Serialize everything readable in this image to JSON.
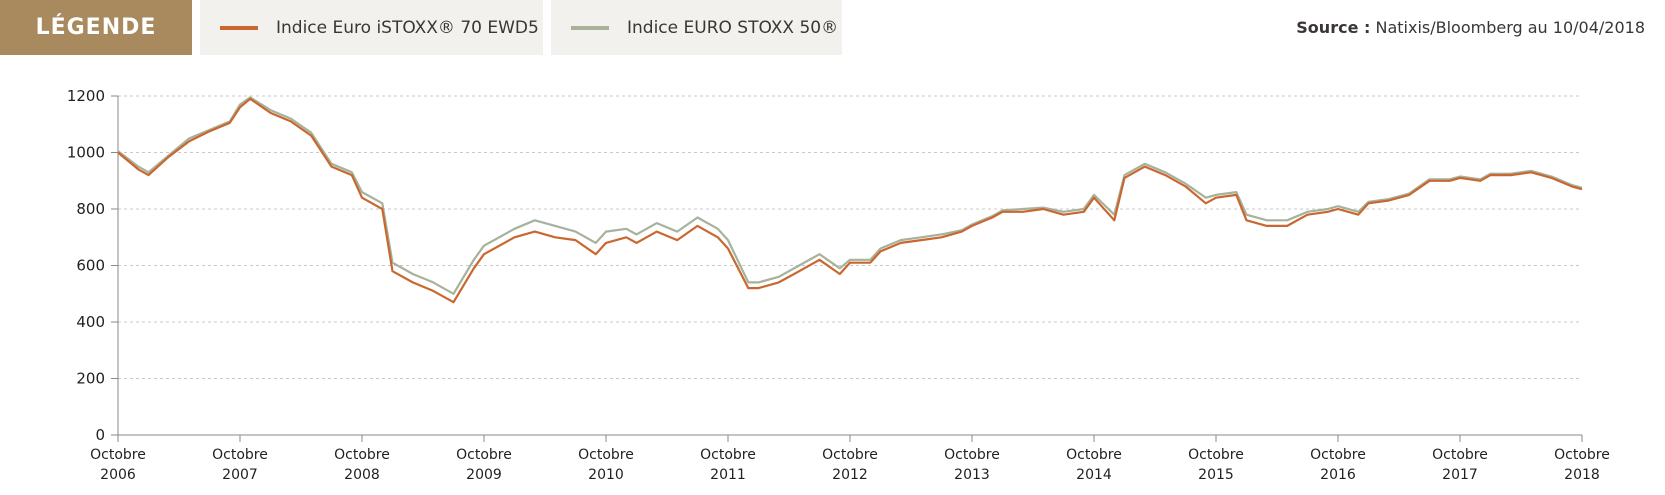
{
  "legend": {
    "title": "LÉGENDE",
    "items": [
      {
        "label": "Indice Euro iSTOXX® 70 EWD5",
        "color": "#c9672f"
      },
      {
        "label": "Indice EURO STOXX 50®",
        "color": "#a6b29c"
      }
    ]
  },
  "source": {
    "label": "Source :",
    "text": "Natixis/Bloomberg au 10/04/2018"
  },
  "chart_data": {
    "type": "line",
    "ylim": [
      0,
      1200
    ],
    "yticks": [
      0,
      200,
      400,
      600,
      800,
      1000,
      1200
    ],
    "xlim": [
      "2006-10",
      "2018-10"
    ],
    "xticks": [
      {
        "month": "Octobre",
        "year": "2006"
      },
      {
        "month": "Octobre",
        "year": "2007"
      },
      {
        "month": "Octobre",
        "year": "2008"
      },
      {
        "month": "Octobre",
        "year": "2009"
      },
      {
        "month": "Octobre",
        "year": "2010"
      },
      {
        "month": "Octobre",
        "year": "2011"
      },
      {
        "month": "Octobre",
        "year": "2012"
      },
      {
        "month": "Octobre",
        "year": "2013"
      },
      {
        "month": "Octobre",
        "year": "2014"
      },
      {
        "month": "Octobre",
        "year": "2015"
      },
      {
        "month": "Octobre",
        "year": "2016"
      },
      {
        "month": "Octobre",
        "year": "2017"
      },
      {
        "month": "Octobre",
        "year": "2018"
      }
    ],
    "grid": true,
    "series": [
      {
        "name": "Indice Euro iSTOXX® 70 EWD5",
        "color": "#c9672f",
        "x": [
          "2006-10",
          "2006-12",
          "2007-01",
          "2007-03",
          "2007-05",
          "2007-07",
          "2007-09",
          "2007-10",
          "2007-11",
          "2008-01",
          "2008-03",
          "2008-05",
          "2008-07",
          "2008-09",
          "2008-10",
          "2008-12",
          "2009-01",
          "2009-03",
          "2009-05",
          "2009-07",
          "2009-09",
          "2009-10",
          "2010-01",
          "2010-03",
          "2010-05",
          "2010-07",
          "2010-09",
          "2010-10",
          "2010-12",
          "2011-01",
          "2011-03",
          "2011-05",
          "2011-07",
          "2011-09",
          "2011-10",
          "2011-12",
          "2012-01",
          "2012-03",
          "2012-05",
          "2012-07",
          "2012-09",
          "2012-10",
          "2012-12",
          "2013-01",
          "2013-03",
          "2013-05",
          "2013-07",
          "2013-09",
          "2013-10",
          "2013-12",
          "2014-01",
          "2014-03",
          "2014-05",
          "2014-07",
          "2014-09",
          "2014-10",
          "2014-12",
          "2015-01",
          "2015-03",
          "2015-05",
          "2015-07",
          "2015-09",
          "2015-10",
          "2015-12",
          "2016-01",
          "2016-03",
          "2016-05",
          "2016-07",
          "2016-09",
          "2016-10",
          "2016-12",
          "2017-01",
          "2017-03",
          "2017-05",
          "2017-07",
          "2017-09",
          "2017-10",
          "2017-12",
          "2018-01",
          "2018-03",
          "2018-05",
          "2018-07",
          "2018-09",
          "2018-10"
        ],
        "y": [
          1000,
          940,
          920,
          985,
          1040,
          1075,
          1105,
          1160,
          1190,
          1140,
          1110,
          1060,
          950,
          920,
          840,
          800,
          580,
          540,
          510,
          470,
          590,
          640,
          700,
          720,
          700,
          690,
          640,
          680,
          700,
          680,
          720,
          690,
          740,
          700,
          660,
          520,
          520,
          540,
          580,
          620,
          570,
          610,
          610,
          650,
          680,
          690,
          700,
          720,
          740,
          770,
          790,
          790,
          800,
          780,
          790,
          840,
          760,
          910,
          950,
          920,
          880,
          820,
          840,
          850,
          760,
          740,
          740,
          780,
          790,
          800,
          780,
          820,
          830,
          850,
          900,
          900,
          910,
          900,
          920,
          920,
          930,
          910,
          880,
          870
        ]
      },
      {
        "name": "Indice EURO STOXX 50®",
        "color": "#a6b29c",
        "x": [
          "2006-10",
          "2006-12",
          "2007-01",
          "2007-03",
          "2007-05",
          "2007-07",
          "2007-09",
          "2007-10",
          "2007-11",
          "2008-01",
          "2008-03",
          "2008-05",
          "2008-07",
          "2008-09",
          "2008-10",
          "2008-12",
          "2009-01",
          "2009-03",
          "2009-05",
          "2009-07",
          "2009-09",
          "2009-10",
          "2010-01",
          "2010-03",
          "2010-05",
          "2010-07",
          "2010-09",
          "2010-10",
          "2010-12",
          "2011-01",
          "2011-03",
          "2011-05",
          "2011-07",
          "2011-09",
          "2011-10",
          "2011-12",
          "2012-01",
          "2012-03",
          "2012-05",
          "2012-07",
          "2012-09",
          "2012-10",
          "2012-12",
          "2013-01",
          "2013-03",
          "2013-05",
          "2013-07",
          "2013-09",
          "2013-10",
          "2013-12",
          "2014-01",
          "2014-03",
          "2014-05",
          "2014-07",
          "2014-09",
          "2014-10",
          "2014-12",
          "2015-01",
          "2015-03",
          "2015-05",
          "2015-07",
          "2015-09",
          "2015-10",
          "2015-12",
          "2016-01",
          "2016-03",
          "2016-05",
          "2016-07",
          "2016-09",
          "2016-10",
          "2016-12",
          "2017-01",
          "2017-03",
          "2017-05",
          "2017-07",
          "2017-09",
          "2017-10",
          "2017-12",
          "2018-01",
          "2018-03",
          "2018-05",
          "2018-07",
          "2018-09",
          "2018-10"
        ],
        "y": [
          1005,
          950,
          930,
          990,
          1050,
          1080,
          1110,
          1170,
          1195,
          1150,
          1120,
          1070,
          960,
          930,
          860,
          820,
          610,
          570,
          540,
          500,
          620,
          670,
          730,
          760,
          740,
          720,
          680,
          720,
          730,
          710,
          750,
          720,
          770,
          730,
          690,
          540,
          540,
          560,
          600,
          640,
          590,
          620,
          620,
          660,
          690,
          700,
          710,
          725,
          745,
          775,
          795,
          800,
          805,
          790,
          800,
          850,
          780,
          920,
          960,
          930,
          890,
          840,
          850,
          860,
          780,
          760,
          760,
          790,
          800,
          810,
          790,
          825,
          835,
          855,
          905,
          905,
          915,
          905,
          925,
          925,
          935,
          915,
          885,
          875
        ]
      }
    ]
  }
}
